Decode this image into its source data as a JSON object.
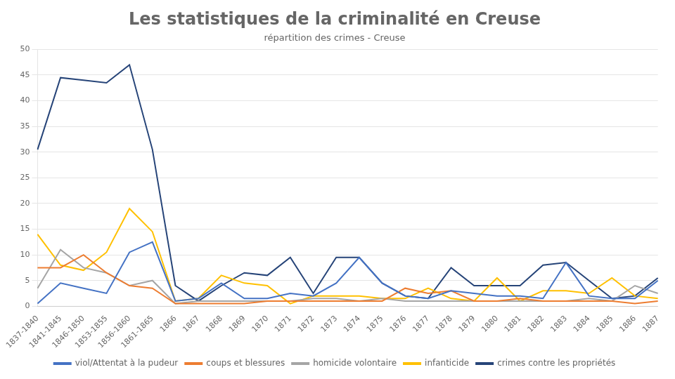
{
  "chart_data": {
    "type": "line",
    "title": "Les statistiques de la criminalité en Creuse",
    "subtitle": "répartition des crimes - Creuse",
    "categories": [
      "1837-1840",
      "1841-1845",
      "1846-1850",
      "1853-1855",
      "1856-1860",
      "1861-1865",
      "1866",
      "1867",
      "1868",
      "1869",
      "1870",
      "1871",
      "1872",
      "1873",
      "1874",
      "1875",
      "1876",
      "1877",
      "1878",
      "1879",
      "1880",
      "1881",
      "1882",
      "1883",
      "1884",
      "1885",
      "1886",
      "1887"
    ],
    "series": [
      {
        "name": "viol/Attentat à la pudeur",
        "color": "#4472C4",
        "values": [
          0.5,
          4.5,
          3.5,
          2.5,
          10.5,
          12.5,
          1.0,
          1.5,
          4.5,
          1.5,
          1.5,
          2.5,
          2.0,
          4.5,
          9.5,
          4.5,
          2.0,
          1.5,
          3.0,
          2.5,
          2.0,
          2.0,
          1.5,
          8.5,
          2.0,
          1.5,
          1.5,
          5.0
        ]
      },
      {
        "name": "coups et blessures",
        "color": "#ED7D31",
        "values": [
          7.5,
          7.5,
          10.0,
          6.5,
          4.0,
          3.5,
          0.5,
          0.5,
          0.5,
          0.5,
          1.0,
          1.0,
          1.0,
          1.0,
          1.0,
          1.0,
          3.5,
          2.5,
          3.0,
          1.0,
          1.0,
          1.5,
          1.0,
          1.0,
          1.0,
          1.0,
          0.5,
          1.0
        ]
      },
      {
        "name": "homicide volontaire",
        "color": "#A5A5A5",
        "values": [
          3.5,
          11.0,
          7.5,
          6.5,
          4.0,
          5.0,
          0.5,
          1.0,
          1.0,
          1.0,
          1.0,
          1.0,
          1.5,
          1.5,
          1.0,
          1.5,
          1.0,
          1.0,
          1.0,
          1.0,
          1.0,
          1.0,
          1.0,
          1.0,
          1.5,
          1.0,
          4.0,
          2.5
        ]
      },
      {
        "name": "infanticide",
        "color": "#FFC000",
        "values": [
          14.0,
          8.0,
          7.0,
          10.5,
          19.0,
          14.5,
          1.0,
          1.5,
          6.0,
          4.5,
          4.0,
          0.5,
          2.0,
          2.0,
          2.0,
          1.5,
          1.5,
          3.5,
          1.5,
          1.0,
          5.5,
          1.0,
          3.0,
          3.0,
          2.5,
          5.5,
          2.0,
          1.5
        ]
      },
      {
        "name": "crimes contre les propriétés",
        "color": "#264478",
        "values": [
          30.5,
          44.5,
          44.0,
          43.5,
          47.0,
          30.5,
          4.0,
          1.0,
          4.0,
          6.5,
          6.0,
          9.5,
          2.5,
          9.5,
          9.5,
          4.5,
          2.0,
          1.5,
          7.5,
          4.0,
          4.0,
          4.0,
          8.0,
          8.5,
          5.0,
          1.5,
          2.0,
          5.5
        ]
      }
    ],
    "ylim": [
      0,
      50
    ],
    "yticks": [
      0,
      5,
      10,
      15,
      20,
      25,
      30,
      35,
      40,
      45,
      50
    ],
    "grid": true,
    "legend": "bottom"
  }
}
